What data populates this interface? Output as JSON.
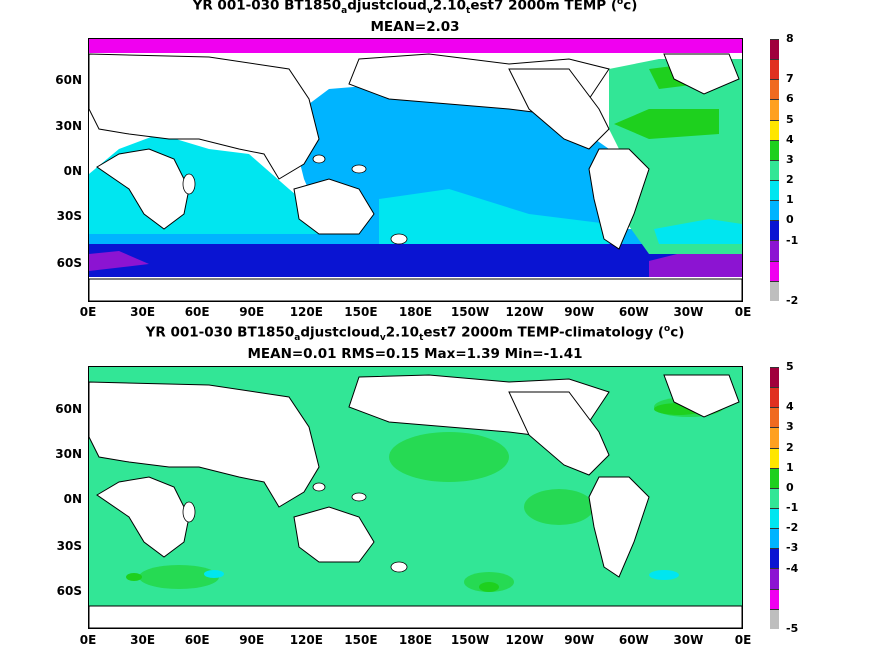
{
  "top": {
    "title_a": "YR 001-030 BT1850",
    "title_sub1": "a",
    "title_b": "djustcloud",
    "title_sub2": "v",
    "title_c": "2.10",
    "title_sub3": "t",
    "title_d": "est7 2000m TEMP (",
    "title_sup": "o",
    "title_e": "c)",
    "stats": "MEAN=2.03",
    "colorbar": {
      "labels": [
        "8",
        "7",
        "6",
        "5",
        "4",
        "3",
        "2",
        "1",
        "0",
        "-1",
        "-2"
      ],
      "colors": [
        "#a0003c",
        "#e03020",
        "#f06a20",
        "#ffa020",
        "#ffe600",
        "#1ed01e",
        "#32e696",
        "#00e6f0",
        "#00b4ff",
        "#0a14d2",
        "#8c14d2",
        "#f000f0",
        "#bebebe"
      ]
    }
  },
  "bottom": {
    "title_a": "YR 001-030 BT1850",
    "title_sub1": "a",
    "title_b": "djustcloud",
    "title_sub2": "v",
    "title_c": "2.10",
    "title_sub3": "t",
    "title_d": "est7 2000m TEMP-climatology (",
    "title_sup": "o",
    "title_e": "c)",
    "stats": "MEAN=0.01   RMS=0.15   Max=1.39   Min=-1.41",
    "colorbar": {
      "labels": [
        "5",
        "4",
        "3",
        "2",
        "1",
        "0",
        "-1",
        "-2",
        "-3",
        "-4",
        "-5"
      ],
      "colors": [
        "#a0003c",
        "#e03020",
        "#f06a20",
        "#ffa020",
        "#ffe600",
        "#1ed01e",
        "#32e696",
        "#00e6f0",
        "#00b4ff",
        "#0a14d2",
        "#8c14d2",
        "#f000f0",
        "#bebebe"
      ]
    }
  },
  "axes": {
    "y_labels": [
      "60N",
      "30N",
      "0N",
      "30S",
      "60S"
    ],
    "x_labels": [
      "0E",
      "30E",
      "60E",
      "90E",
      "120E",
      "150E",
      "180E",
      "150W",
      "120W",
      "90W",
      "60W",
      "30W",
      "0E"
    ]
  }
}
